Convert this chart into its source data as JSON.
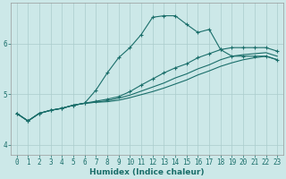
{
  "xlabel": "Humidex (Indice chaleur)",
  "bg_color": "#cce8e8",
  "line_color": "#1a6e6a",
  "grid_color": "#aacccc",
  "xlim": [
    -0.5,
    23.5
  ],
  "ylim": [
    3.8,
    6.8
  ],
  "xticks": [
    0,
    1,
    2,
    3,
    4,
    5,
    6,
    7,
    8,
    9,
    10,
    11,
    12,
    13,
    14,
    15,
    16,
    17,
    18,
    19,
    20,
    21,
    22,
    23
  ],
  "yticks": [
    4,
    5,
    6
  ],
  "series": [
    {
      "y": [
        4.62,
        4.47,
        4.62,
        4.68,
        4.72,
        4.78,
        4.82,
        5.08,
        5.42,
        5.72,
        5.92,
        6.18,
        6.52,
        6.55,
        6.55,
        6.38,
        6.22,
        6.28,
        5.88,
        5.75,
        5.75,
        5.75,
        5.75,
        5.68
      ],
      "marker": true
    },
    {
      "y": [
        4.62,
        4.47,
        4.62,
        4.68,
        4.72,
        4.78,
        4.82,
        4.86,
        4.9,
        4.95,
        5.05,
        5.18,
        5.3,
        5.42,
        5.52,
        5.6,
        5.72,
        5.8,
        5.88,
        5.92,
        5.92,
        5.92,
        5.92,
        5.85
      ],
      "marker": true
    },
    {
      "y": [
        4.62,
        4.47,
        4.62,
        4.68,
        4.72,
        4.78,
        4.82,
        4.84,
        4.87,
        4.92,
        4.98,
        5.06,
        5.14,
        5.22,
        5.32,
        5.4,
        5.5,
        5.58,
        5.68,
        5.75,
        5.78,
        5.8,
        5.82,
        5.75
      ],
      "marker": false
    },
    {
      "y": [
        4.62,
        4.47,
        4.62,
        4.68,
        4.72,
        4.78,
        4.82,
        4.84,
        4.85,
        4.88,
        4.93,
        4.99,
        5.05,
        5.12,
        5.2,
        5.28,
        5.38,
        5.46,
        5.55,
        5.62,
        5.68,
        5.72,
        5.75,
        5.68
      ],
      "marker": false
    }
  ]
}
